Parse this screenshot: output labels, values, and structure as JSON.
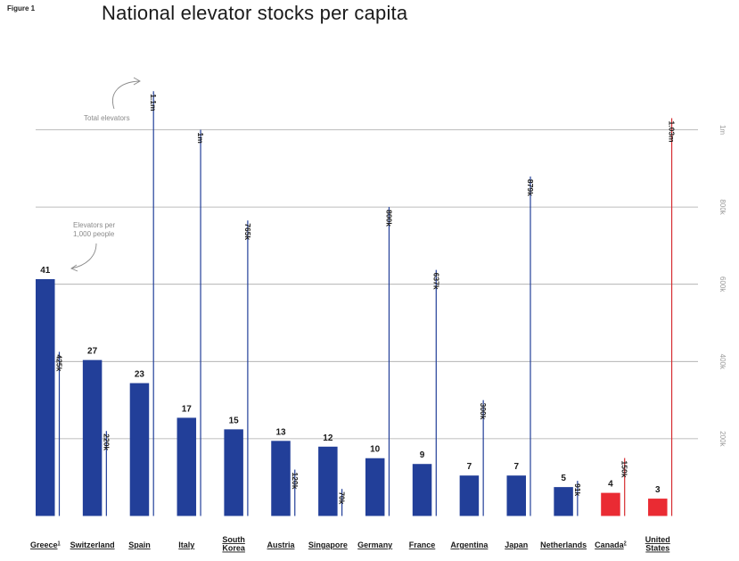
{
  "figure_label": "Figure 1",
  "chart_data": {
    "type": "bar",
    "title": "National elevator stocks per capita",
    "annotations": {
      "total_label": "Total elevators",
      "per_capita_label": [
        "Elevators per",
        "1,000 people"
      ]
    },
    "right_axis": {
      "label": "Total elevators",
      "ticks": [
        {
          "value": 200000,
          "label": "200k"
        },
        {
          "value": 400000,
          "label": "400k"
        },
        {
          "value": 600000,
          "label": "600k"
        },
        {
          "value": 800000,
          "label": "800k"
        },
        {
          "value": 1000000,
          "label": "1m"
        }
      ],
      "range": [
        0,
        1000000
      ]
    },
    "colors": {
      "bar": "#223f99",
      "highlight": "#ea2b33",
      "line_blue": "#223f99",
      "line_red": "#d62c30",
      "grid": "#a8a8a8"
    },
    "categories": [
      {
        "name": "Greece",
        "sup": "1",
        "per_capita": 41,
        "per_label": "41",
        "total": 425000,
        "total_label": "425k",
        "highlight": false
      },
      {
        "name": "Switzerland",
        "sup": "",
        "per_capita": 27,
        "per_label": "27",
        "total": 220000,
        "total_label": "220k",
        "highlight": false
      },
      {
        "name": "Spain",
        "sup": "",
        "per_capita": 23,
        "per_label": "23",
        "total": 1100000,
        "total_label": "1.1m",
        "highlight": false
      },
      {
        "name": "Italy",
        "sup": "",
        "per_capita": 17,
        "per_label": "17",
        "total": 1000000,
        "total_label": "1m",
        "highlight": false
      },
      {
        "name": "South Korea",
        "lines": [
          "South",
          "Korea"
        ],
        "sup": "",
        "per_capita": 15,
        "per_label": "15",
        "total": 765000,
        "total_label": "765k",
        "highlight": false
      },
      {
        "name": "Austria",
        "sup": "",
        "per_capita": 13,
        "per_label": "13",
        "total": 120000,
        "total_label": "120k",
        "highlight": false
      },
      {
        "name": "Singapore",
        "sup": "",
        "per_capita": 12,
        "per_label": "12",
        "total": 70000,
        "total_label": "70k",
        "highlight": false
      },
      {
        "name": "Germany",
        "sup": "",
        "per_capita": 10,
        "per_label": "10",
        "total": 800000,
        "total_label": "800k",
        "highlight": false
      },
      {
        "name": "France",
        "sup": "",
        "per_capita": 9,
        "per_label": "9",
        "total": 637000,
        "total_label": "637k",
        "highlight": false
      },
      {
        "name": "Argentina",
        "sup": "",
        "per_capita": 7,
        "per_label": "7",
        "total": 300000,
        "total_label": "300k",
        "highlight": false
      },
      {
        "name": "Japan",
        "sup": "",
        "per_capita": 7,
        "per_label": "7",
        "total": 879000,
        "total_label": "879k",
        "highlight": false
      },
      {
        "name": "Netherlands",
        "sup": "",
        "per_capita": 5,
        "per_label": "5",
        "total": 91000,
        "total_label": "91k",
        "highlight": false
      },
      {
        "name": "Canada",
        "sup": "2",
        "per_capita": 4,
        "per_label": "4",
        "total": 150000,
        "total_label": "150k",
        "highlight": true
      },
      {
        "name": "United States",
        "lines": [
          "United",
          "States"
        ],
        "sup": "",
        "per_capita": 3,
        "per_label": "3",
        "total": 1030000,
        "total_label": "1.03m",
        "highlight": true
      }
    ]
  }
}
